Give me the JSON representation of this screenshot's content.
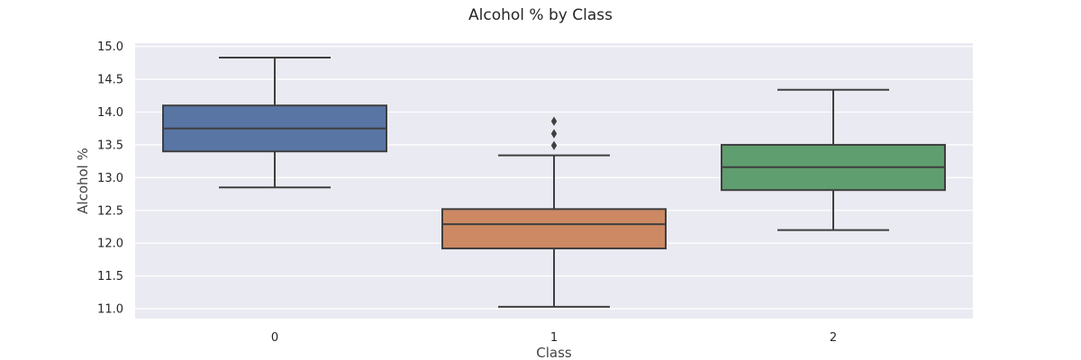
{
  "chart_data": {
    "type": "box",
    "title": "Alcohol % by Class",
    "xlabel": "Class",
    "ylabel": "Alcohol %",
    "categories": [
      "0",
      "1",
      "2"
    ],
    "ylim": [
      10.85,
      15.05
    ],
    "yticks": [
      "11.0",
      "11.5",
      "12.0",
      "12.5",
      "13.0",
      "13.5",
      "14.0",
      "14.5",
      "15.0"
    ],
    "grid": true,
    "colors": {
      "background": "#eaeaf2",
      "grid": "#ffffff",
      "box_edge": "#3f3f3f"
    },
    "boxes": [
      {
        "category": "0",
        "color": "#5975a4",
        "whisker_low": 12.85,
        "q1": 13.4,
        "median": 13.75,
        "q3": 14.1,
        "whisker_high": 14.83,
        "outliers": []
      },
      {
        "category": "1",
        "color": "#cc8963",
        "whisker_low": 11.03,
        "q1": 11.92,
        "median": 12.29,
        "q3": 12.52,
        "whisker_high": 13.34,
        "outliers": [
          13.49,
          13.67,
          13.86
        ]
      },
      {
        "category": "2",
        "color": "#5f9e6e",
        "whisker_low": 12.2,
        "q1": 12.81,
        "median": 13.16,
        "q3": 13.5,
        "whisker_high": 14.34,
        "outliers": []
      }
    ]
  }
}
